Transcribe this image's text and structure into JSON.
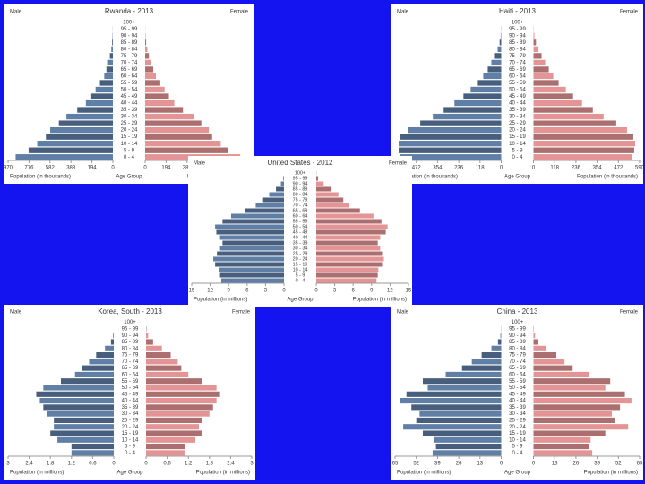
{
  "chart_data": [
    {
      "type": "pyramid",
      "title": "Rwanda - 2013",
      "categories": [
        "0 - 4",
        "5 - 9",
        "10 - 14",
        "15 - 19",
        "20 - 24",
        "25 - 29",
        "30 - 34",
        "35 - 39",
        "40 - 44",
        "45 - 49",
        "50 - 54",
        "55 - 59",
        "60 - 64",
        "65 - 69",
        "70 - 74",
        "75 - 79",
        "80 - 84",
        "85 - 89",
        "90 - 94",
        "95 - 99",
        "100+"
      ],
      "series": [
        {
          "name": "Male",
          "color": "#5f7fa6",
          "values": [
            900,
            780,
            700,
            620,
            580,
            500,
            430,
            330,
            250,
            200,
            160,
            120,
            80,
            60,
            45,
            28,
            15,
            7,
            3,
            1,
            0
          ]
        },
        {
          "name": "Female",
          "color": "#e49494",
          "values": [
            880,
            770,
            700,
            620,
            590,
            520,
            450,
            350,
            270,
            220,
            180,
            140,
            100,
            75,
            55,
            35,
            20,
            9,
            4,
            1,
            0
          ]
        }
      ],
      "xlim": [
        0,
        970
      ],
      "xticks": [
        0,
        194,
        388,
        582,
        776,
        970
      ],
      "x_label": "Population (in thousands)",
      "category_label": "Age Group",
      "x_label_right": "Population (in thousands)"
    },
    {
      "type": "pyramid",
      "title": "Haiti - 2013",
      "categories": [
        "0 - 4",
        "5 - 9",
        "10 - 14",
        "15 - 19",
        "20 - 24",
        "25 - 29",
        "30 - 34",
        "35 - 39",
        "40 - 44",
        "45 - 49",
        "50 - 54",
        "55 - 59",
        "60 - 64",
        "65 - 69",
        "70 - 74",
        "75 - 79",
        "80 - 84",
        "85 - 89",
        "90 - 94",
        "95 - 99",
        "100+"
      ],
      "series": [
        {
          "name": "Male",
          "color": "#5f7fa6",
          "values": [
            560,
            570,
            570,
            560,
            520,
            450,
            380,
            320,
            260,
            210,
            170,
            130,
            100,
            75,
            55,
            35,
            20,
            9,
            3,
            1,
            0
          ]
        },
        {
          "name": "Female",
          "color": "#e49494",
          "values": [
            550,
            560,
            565,
            555,
            520,
            460,
            390,
            330,
            270,
            220,
            180,
            140,
            110,
            85,
            65,
            45,
            28,
            14,
            5,
            1,
            0
          ]
        }
      ],
      "xlim": [
        0,
        590
      ],
      "xticks": [
        0,
        118,
        236,
        354,
        472,
        590
      ],
      "x_label": "Population (in thousands)",
      "category_label": "Age Group",
      "x_label_right": "Population (in thousands)"
    },
    {
      "type": "pyramid",
      "title": "United States - 2012",
      "categories": [
        "0 - 4",
        "5 - 9",
        "10 - 14",
        "15 - 19",
        "20 - 24",
        "25 - 29",
        "30 - 34",
        "35 - 39",
        "40 - 44",
        "45 - 49",
        "50 - 54",
        "55 - 59",
        "60 - 64",
        "65 - 69",
        "70 - 74",
        "75 - 79",
        "80 - 84",
        "85 - 89",
        "90 - 94",
        "95 - 99",
        "100+"
      ],
      "series": [
        {
          "name": "Male",
          "color": "#5f7fa6",
          "values": [
            10.2,
            10.4,
            10.6,
            11.2,
            11.5,
            10.9,
            10.4,
            10.0,
            10.4,
            11.0,
            11.2,
            10.0,
            8.6,
            6.4,
            4.6,
            3.4,
            2.4,
            1.3,
            0.5,
            0.1,
            0
          ]
        },
        {
          "name": "Female",
          "color": "#e49494",
          "values": [
            9.8,
            10.0,
            10.1,
            10.7,
            11.0,
            10.7,
            10.4,
            10.0,
            10.4,
            11.3,
            11.6,
            10.6,
            9.3,
            7.1,
            5.4,
            4.4,
            3.6,
            2.5,
            1.2,
            0.3,
            0.05
          ]
        }
      ],
      "xlim": [
        0,
        15
      ],
      "xticks": [
        0,
        3,
        6,
        9,
        12,
        15
      ],
      "x_label": "Population (in millions)",
      "category_label": "Age Group",
      "x_label_right": "Population (in millions)"
    },
    {
      "type": "pyramid",
      "title": "Korea, South - 2013",
      "categories": [
        "0 - 4",
        "5 - 9",
        "10 - 14",
        "15 - 19",
        "20 - 24",
        "25 - 29",
        "30 - 34",
        "35 - 39",
        "40 - 44",
        "45 - 49",
        "50 - 54",
        "55 - 59",
        "60 - 64",
        "65 - 69",
        "70 - 74",
        "75 - 79",
        "80 - 84",
        "85 - 89",
        "90 - 94",
        "95 - 99",
        "100+"
      ],
      "series": [
        {
          "name": "Male",
          "color": "#5f7fa6",
          "values": [
            1.2,
            1.2,
            1.6,
            1.8,
            1.7,
            1.7,
            1.9,
            2.0,
            2.1,
            2.2,
            2.0,
            1.5,
            1.1,
            0.9,
            0.7,
            0.5,
            0.25,
            0.08,
            0.02,
            0,
            0
          ]
        },
        {
          "name": "Female",
          "color": "#e49494",
          "values": [
            1.1,
            1.1,
            1.4,
            1.6,
            1.5,
            1.6,
            1.8,
            1.9,
            2.0,
            2.1,
            2.0,
            1.6,
            1.2,
            1.0,
            0.9,
            0.7,
            0.45,
            0.2,
            0.06,
            0.01,
            0
          ]
        }
      ],
      "xlim": [
        0,
        3
      ],
      "xticks": [
        0,
        0.6,
        1.2,
        1.8,
        2.4,
        3
      ],
      "x_label": "Population (in millions)",
      "category_label": "Age Group",
      "x_label_right": "Population (in millions)"
    },
    {
      "type": "pyramid",
      "title": "China - 2013",
      "categories": [
        "0 - 4",
        "5 - 9",
        "10 - 14",
        "15 - 19",
        "20 - 24",
        "25 - 29",
        "30 - 34",
        "35 - 39",
        "40 - 44",
        "45 - 49",
        "50 - 54",
        "55 - 59",
        "60 - 64",
        "65 - 69",
        "70 - 74",
        "75 - 79",
        "80 - 84",
        "85 - 89",
        "90 - 94",
        "95 - 99",
        "100+"
      ],
      "series": [
        {
          "name": "Male",
          "color": "#5f7fa6",
          "values": [
            42,
            40,
            41,
            48,
            60,
            52,
            50,
            55,
            62,
            58,
            45,
            48,
            34,
            24,
            18,
            12,
            6,
            2,
            0.5,
            0.1,
            0
          ]
        },
        {
          "name": "Female",
          "color": "#e49494",
          "values": [
            36,
            34,
            35,
            44,
            58,
            50,
            48,
            53,
            60,
            56,
            44,
            47,
            34,
            24,
            19,
            14,
            8,
            3,
            1,
            0.2,
            0
          ]
        }
      ],
      "xlim": [
        0,
        65
      ],
      "xticks": [
        0,
        13,
        26,
        39,
        52,
        65
      ],
      "x_label": "Population (in millions)",
      "category_label": "Age Group",
      "x_label_right": "Population (in millions)"
    }
  ]
}
